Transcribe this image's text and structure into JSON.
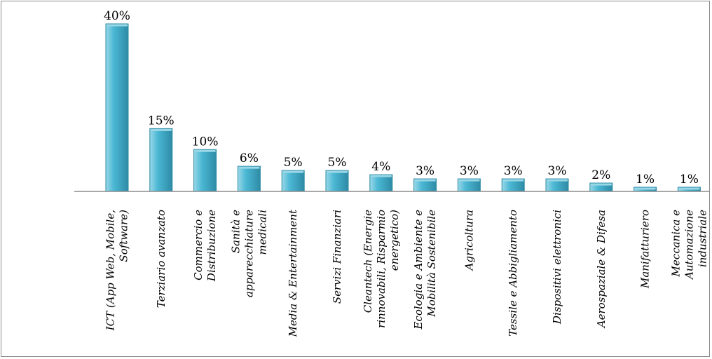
{
  "chart_data": {
    "type": "bar",
    "categories": [
      "ICT (App Web, Mobile, Software)",
      "Terziario avanzato",
      "Commercio e Distribuzione",
      "Sanità e apparecchiature medicali",
      "Media & Entertainment",
      "Servizi Finanziari",
      "Cleantech (Energie rinnovabili, Risparmio energetico)",
      "Ecologia e Ambiente e Mobilità Sostenibile",
      "Agricoltura",
      "Tessile e Abbigliamento",
      "Dispositivi elettronici",
      "Aerospaziale & Difesa",
      "Manifatturiero",
      "Meccanica e Automazione industriale"
    ],
    "category_lines": [
      [
        "ICT (App Web, Mobile,",
        "Software)"
      ],
      [
        "Terziario avanzato"
      ],
      [
        "Commercio e",
        "Distribuzione"
      ],
      [
        "Sanità e",
        "apparecchiature",
        "medicali"
      ],
      [
        "Media & Entertainment"
      ],
      [
        "Servizi Finanziari"
      ],
      [
        "Cleantech (Energie",
        "rinnovabili, Risparmio",
        "energetico)"
      ],
      [
        "Ecologia e Ambiente e",
        "Mobilità Sostenibile"
      ],
      [
        "Agricoltura"
      ],
      [
        "Tessile e Abbigliamento"
      ],
      [
        "Dispositivi elettronici"
      ],
      [
        "Aerospaziale & Difesa"
      ],
      [
        "Manifatturiero"
      ],
      [
        "Meccanica e",
        "Automazione",
        "industriale"
      ]
    ],
    "values": [
      40,
      15,
      10,
      6,
      5,
      5,
      4,
      3,
      3,
      3,
      3,
      2,
      1,
      1
    ],
    "value_labels": [
      "40%",
      "15%",
      "10%",
      "6%",
      "5%",
      "5%",
      "4%",
      "3%",
      "3%",
      "3%",
      "3%",
      "2%",
      "1%",
      "1%"
    ],
    "title": "",
    "xlabel": "",
    "ylabel": "",
    "ylim": [
      0,
      40
    ],
    "grid": false,
    "legend": "none",
    "colors": {
      "bar_fill": "#4bb8d4",
      "bar_dark": "#2e8ba6",
      "bar_light": "#9ad8e8",
      "axis": "#8c8c8c"
    }
  }
}
